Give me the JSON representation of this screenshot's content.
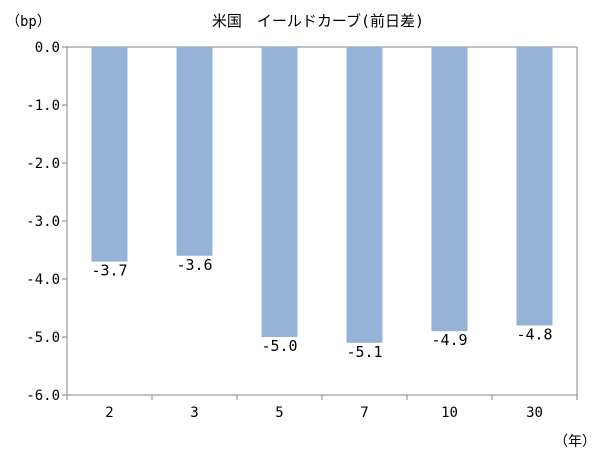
{
  "chart_data": {
    "type": "bar",
    "title": "米国　イールドカーブ(前日差)",
    "ylabel": "（bp）",
    "xlabel": "（年）",
    "categories": [
      "2",
      "3",
      "5",
      "7",
      "10",
      "30"
    ],
    "values": [
      -3.7,
      -3.6,
      -5.0,
      -5.1,
      -4.9,
      -4.8
    ],
    "data_labels": [
      "-3.7",
      "-3.6",
      "-5.0",
      "-5.1",
      "-4.9",
      "-4.8"
    ],
    "ylim": [
      -6.0,
      0.0
    ],
    "yticks": [
      0.0,
      -1.0,
      -2.0,
      -3.0,
      -4.0,
      -5.0,
      -6.0
    ],
    "ytick_labels": [
      "0.0",
      "-1.0",
      "-2.0",
      "-3.0",
      "-4.0",
      "-5.0",
      "-6.0"
    ],
    "grid": false,
    "legend": "none",
    "bar_color": "#95b3d7"
  }
}
